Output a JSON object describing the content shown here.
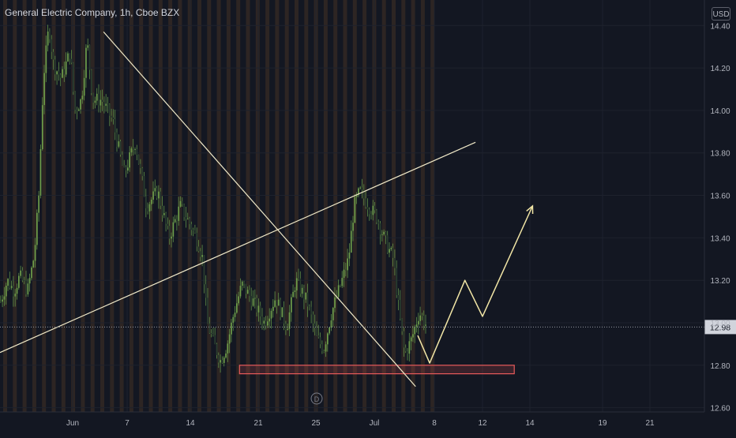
{
  "chart": {
    "title": "General Electric Company, 1h, Cboe BZX",
    "currency": "USD",
    "event_marker": "D"
  },
  "colors": {
    "background": "#131722",
    "session_stripe": "#e0822c",
    "grid": "#1e222d",
    "axis_text": "#b2b5be",
    "candle_up": "#6f9f4a",
    "candle_down": "#2a3d2f",
    "candle_wick": "#5f8f45",
    "trendline": "#f0e9c8",
    "projection": "#f2e6a6",
    "support_zone": "#e85a5a",
    "price_label_bg": "#d1d4dc",
    "price_label_text": "#131722"
  },
  "chart_data": {
    "type": "candlestick",
    "title": "General Electric Company, 1h, Cboe BZX",
    "y_axis": {
      "ticks": [
        12.6,
        12.8,
        13.0,
        13.2,
        13.4,
        13.6,
        13.8,
        14.0,
        14.2,
        14.4
      ],
      "tick_labels": [
        "12.60",
        "12.80",
        "13.00",
        "13.20",
        "13.40",
        "13.60",
        "13.80",
        "14.00",
        "14.20",
        "14.40"
      ],
      "ylim": [
        12.58,
        14.52
      ]
    },
    "x_axis": {
      "tick_labels": [
        "Jun",
        "7",
        "14",
        "21",
        "25",
        "Jul",
        "8",
        "12",
        "14",
        "19",
        "21"
      ]
    },
    "current_price": 12.98,
    "current_price_label": "12.98",
    "price_path": [
      {
        "t": 0.0,
        "p": 13.1
      },
      {
        "t": 0.6,
        "p": 13.2
      },
      {
        "t": 1.2,
        "p": 13.15
      },
      {
        "t": 1.7,
        "p": 13.22
      },
      {
        "t": 2.4,
        "p": 13.15
      },
      {
        "t": 3.0,
        "p": 13.32
      },
      {
        "t": 3.4,
        "p": 13.6
      },
      {
        "t": 3.8,
        "p": 14.15
      },
      {
        "t": 4.3,
        "p": 14.4
      },
      {
        "t": 4.7,
        "p": 14.22
      },
      {
        "t": 5.4,
        "p": 14.15
      },
      {
        "t": 6.2,
        "p": 14.28
      },
      {
        "t": 6.6,
        "p": 14.0
      },
      {
        "t": 7.2,
        "p": 14.05
      },
      {
        "t": 7.7,
        "p": 14.33
      },
      {
        "t": 8.2,
        "p": 14.05
      },
      {
        "t": 9.0,
        "p": 14.05
      },
      {
        "t": 10.0,
        "p": 13.95
      },
      {
        "t": 11.0,
        "p": 13.7
      },
      {
        "t": 12.0,
        "p": 13.85
      },
      {
        "t": 13.0,
        "p": 13.55
      },
      {
        "t": 14.0,
        "p": 13.62
      },
      {
        "t": 15.0,
        "p": 13.4
      },
      {
        "t": 16.0,
        "p": 13.55
      },
      {
        "t": 17.0,
        "p": 13.45
      },
      {
        "t": 17.6,
        "p": 13.38
      },
      {
        "t": 18.0,
        "p": 13.3
      },
      {
        "t": 18.4,
        "p": 13.0
      },
      {
        "t": 19.0,
        "p": 12.9
      },
      {
        "t": 19.6,
        "p": 12.82
      },
      {
        "t": 20.2,
        "p": 12.9
      },
      {
        "t": 20.8,
        "p": 13.05
      },
      {
        "t": 21.5,
        "p": 13.18
      },
      {
        "t": 22.5,
        "p": 13.1
      },
      {
        "t": 23.5,
        "p": 13.0
      },
      {
        "t": 24.5,
        "p": 13.12
      },
      {
        "t": 25.5,
        "p": 12.98
      },
      {
        "t": 26.3,
        "p": 13.2
      },
      {
        "t": 27.3,
        "p": 13.1
      },
      {
        "t": 28.2,
        "p": 12.92
      },
      {
        "t": 28.8,
        "p": 12.88
      },
      {
        "t": 29.5,
        "p": 13.05
      },
      {
        "t": 30.3,
        "p": 13.18
      },
      {
        "t": 31.0,
        "p": 13.3
      },
      {
        "t": 31.5,
        "p": 13.55
      },
      {
        "t": 32.0,
        "p": 13.62
      },
      {
        "t": 32.8,
        "p": 13.55
      },
      {
        "t": 33.5,
        "p": 13.5
      },
      {
        "t": 34.3,
        "p": 13.38
      },
      {
        "t": 35.0,
        "p": 13.3
      },
      {
        "t": 35.5,
        "p": 13.05
      },
      {
        "t": 36.0,
        "p": 12.85
      },
      {
        "t": 36.6,
        "p": 12.92
      },
      {
        "t": 37.3,
        "p": 13.05
      },
      {
        "t": 38.0,
        "p": 12.98
      }
    ],
    "annotations": {
      "descending_trendline": [
        {
          "x": 0.147,
          "y": 14.37
        },
        {
          "x": 0.59,
          "y": 12.7
        }
      ],
      "ascending_trendline": [
        {
          "x": 0.0,
          "y": 12.86
        },
        {
          "x": 0.675,
          "y": 13.85
        }
      ],
      "support_zone": {
        "x_start": 0.34,
        "x_end": 0.73,
        "y_low": 12.76,
        "y_high": 12.8
      },
      "projection_path": [
        {
          "x": 0.593,
          "y": 12.94
        },
        {
          "x": 0.61,
          "y": 12.81
        },
        {
          "x": 0.66,
          "y": 13.2
        },
        {
          "x": 0.685,
          "y": 13.03
        },
        {
          "x": 0.756,
          "y": 13.55
        }
      ]
    }
  }
}
